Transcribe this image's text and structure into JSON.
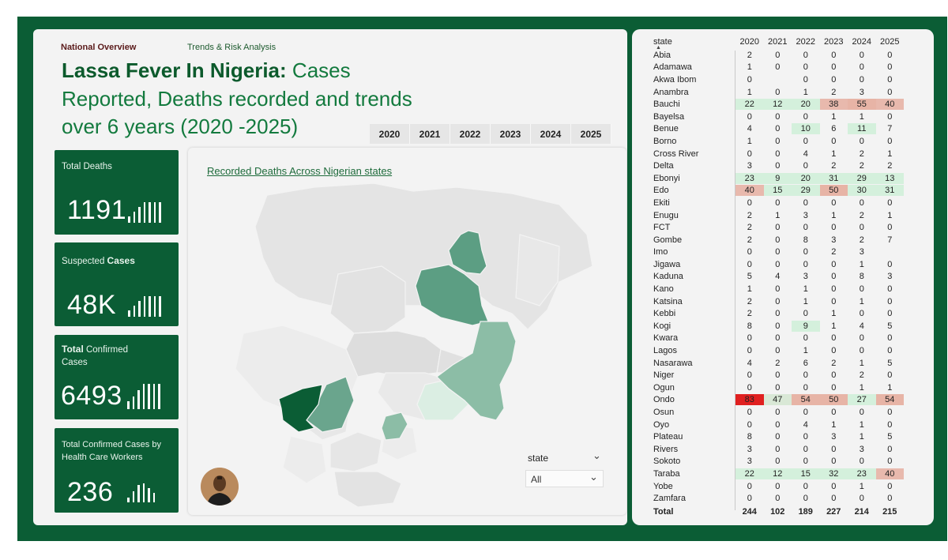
{
  "nav": {
    "national_overview": "National Overview",
    "trends": "Trends & Risk Analysis"
  },
  "title": {
    "bold": "Lassa Fever In Nigeria:",
    "rest1": " Cases",
    "line2": "Reported, Deaths recorded and trends",
    "line3": "over  6 years (2020 -2025)"
  },
  "year_slicer": [
    "2020",
    "2021",
    "2022",
    "2023",
    "2024",
    "2025"
  ],
  "kpis": [
    {
      "label_pre": "Total Deaths",
      "label_bold": "",
      "label_post": "",
      "value": "1191"
    },
    {
      "label_pre": "Suspected ",
      "label_bold": "Cases",
      "label_post": "",
      "value": "48K"
    },
    {
      "label_pre": "",
      "label_bold": "Total",
      "label_post": " Confirmed Cases",
      "value": "6493"
    },
    {
      "label_pre": "Total Confirmed Cases by Health Care Workers",
      "label_bold": "",
      "label_post": "",
      "value": "236"
    }
  ],
  "map": {
    "title": "Recorded Deaths  Across Nigerian states"
  },
  "state_slicer": {
    "label": "state",
    "selected": "All"
  },
  "colors": {
    "brand_green": "#0b5d35",
    "title_green": "#137a3e",
    "high": "#e02020",
    "mid": "#e8b9ad",
    "low": "#d4f0dc"
  },
  "table": {
    "columns": [
      "state",
      "2020",
      "2021",
      "2022",
      "2023",
      "2024",
      "2025"
    ],
    "rows": [
      [
        "Abia",
        "2",
        "0",
        "0",
        "0",
        "0",
        "0"
      ],
      [
        "Adamawa",
        "1",
        "0",
        "0",
        "0",
        "0",
        "0"
      ],
      [
        "Akwa Ibom",
        "0",
        "",
        "0",
        "0",
        "0",
        "0"
      ],
      [
        "Anambra",
        "1",
        "0",
        "1",
        "2",
        "3",
        "0"
      ],
      [
        "Bauchi",
        "22",
        "12",
        "20",
        "38",
        "55",
        "40"
      ],
      [
        "Bayelsa",
        "0",
        "0",
        "0",
        "1",
        "1",
        "0"
      ],
      [
        "Benue",
        "4",
        "0",
        "10",
        "6",
        "11",
        "7"
      ],
      [
        "Borno",
        "1",
        "0",
        "0",
        "0",
        "0",
        "0"
      ],
      [
        "Cross River",
        "0",
        "0",
        "4",
        "1",
        "2",
        "1"
      ],
      [
        "Delta",
        "3",
        "0",
        "0",
        "2",
        "2",
        "2"
      ],
      [
        "Ebonyi",
        "23",
        "9",
        "20",
        "31",
        "29",
        "13"
      ],
      [
        "Edo",
        "40",
        "15",
        "29",
        "50",
        "30",
        "31"
      ],
      [
        "Ekiti",
        "0",
        "0",
        "0",
        "0",
        "0",
        "0"
      ],
      [
        "Enugu",
        "2",
        "1",
        "3",
        "1",
        "2",
        "1"
      ],
      [
        "FCT",
        "2",
        "0",
        "0",
        "0",
        "0",
        "0"
      ],
      [
        "Gombe",
        "2",
        "0",
        "8",
        "3",
        "2",
        "7"
      ],
      [
        "Imo",
        "0",
        "0",
        "0",
        "2",
        "3",
        ""
      ],
      [
        "Jigawa",
        "0",
        "0",
        "0",
        "0",
        "1",
        "0"
      ],
      [
        "Kaduna",
        "5",
        "4",
        "3",
        "0",
        "8",
        "3"
      ],
      [
        "Kano",
        "1",
        "0",
        "1",
        "0",
        "0",
        "0"
      ],
      [
        "Katsina",
        "2",
        "0",
        "1",
        "0",
        "1",
        "0"
      ],
      [
        "Kebbi",
        "2",
        "0",
        "0",
        "1",
        "0",
        "0"
      ],
      [
        "Kogi",
        "8",
        "0",
        "9",
        "1",
        "4",
        "5"
      ],
      [
        "Kwara",
        "0",
        "0",
        "0",
        "0",
        "0",
        "0"
      ],
      [
        "Lagos",
        "0",
        "0",
        "1",
        "0",
        "0",
        "0"
      ],
      [
        "Nasarawa",
        "4",
        "2",
        "6",
        "2",
        "1",
        "5"
      ],
      [
        "Niger",
        "0",
        "0",
        "0",
        "0",
        "2",
        "0"
      ],
      [
        "Ogun",
        "0",
        "0",
        "0",
        "0",
        "1",
        "1"
      ],
      [
        "Ondo",
        "83",
        "47",
        "54",
        "50",
        "27",
        "54"
      ],
      [
        "Osun",
        "0",
        "0",
        "0",
        "0",
        "0",
        "0"
      ],
      [
        "Oyo",
        "0",
        "0",
        "4",
        "1",
        "1",
        "0"
      ],
      [
        "Plateau",
        "8",
        "0",
        "0",
        "3",
        "1",
        "5"
      ],
      [
        "Rivers",
        "3",
        "0",
        "0",
        "0",
        "3",
        "0"
      ],
      [
        "Sokoto",
        "3",
        "0",
        "0",
        "0",
        "0",
        "0"
      ],
      [
        "Taraba",
        "22",
        "12",
        "15",
        "32",
        "23",
        "40"
      ],
      [
        "Yobe",
        "0",
        "0",
        "0",
        "0",
        "1",
        "0"
      ],
      [
        "Zamfara",
        "0",
        "0",
        "0",
        "0",
        "0",
        "0"
      ]
    ],
    "total": [
      "Total",
      "244",
      "102",
      "189",
      "227",
      "214",
      "215"
    ]
  }
}
